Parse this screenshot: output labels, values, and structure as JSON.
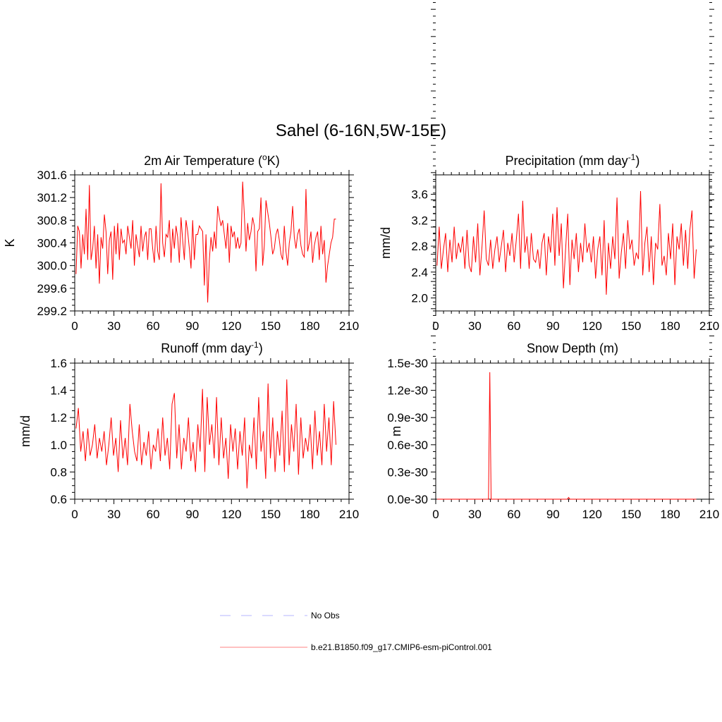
{
  "figure": {
    "title": "Sahel (6-16N,5W-15E)"
  },
  "legend": [
    {
      "label": "No Obs",
      "color": "#b4b4ff",
      "style": "dashed"
    },
    {
      "label": "b.e21.B1850.f09_g17.CMIP6-esm-piControl.001",
      "color": "#ff8080",
      "style": "solid"
    }
  ],
  "chart_data": [
    {
      "id": "temp",
      "type": "line",
      "title": "2m Air Temperature (°K)",
      "title_parts": [
        "2m Air Temperature (",
        "o",
        "K)"
      ],
      "xlabel": "",
      "ylabel": "K",
      "xlim": [
        0,
        210
      ],
      "ylim": [
        299.2,
        301.6
      ],
      "grid": false,
      "xticks": [
        0,
        30,
        60,
        90,
        120,
        150,
        180,
        210
      ],
      "xtick_labels": [
        "0",
        "30",
        "60",
        "90",
        "120",
        "150",
        "180",
        "210"
      ],
      "yticks": [
        299.2,
        299.6,
        300.0,
        300.4,
        300.8,
        301.2,
        301.6
      ],
      "ytick_labels": [
        "299.2",
        "299.6",
        "300.0",
        "300.4",
        "300.8",
        "301.2",
        "301.6"
      ],
      "series": [
        {
          "name": "b.e21.B1850.f09_g17.CMIP6-esm-piControl.001",
          "color": "#ff0000",
          "y": [
            299.85,
            300.7,
            300.6,
            299.95,
            300.55,
            300.2,
            301.0,
            300.1,
            301.42,
            300.1,
            300.3,
            300.7,
            299.95,
            300.55,
            299.68,
            300.5,
            300.3,
            300.9,
            300.6,
            299.85,
            300.45,
            300.6,
            299.75,
            300.7,
            300.2,
            300.75,
            300.1,
            300.65,
            300.4,
            300.45,
            300.2,
            300.7,
            300.5,
            300.3,
            300.8,
            300.0,
            300.55,
            300.35,
            300.15,
            300.7,
            300.25,
            300.5,
            300.6,
            300.1,
            300.65,
            300.65,
            300.3,
            300.05,
            300.7,
            300.25,
            300.1,
            301.45,
            300.4,
            300.15,
            300.55,
            300.5,
            300.8,
            300.05,
            300.65,
            300.3,
            300.7,
            300.5,
            300.05,
            300.85,
            300.45,
            300.1,
            300.8,
            300.6,
            300.3,
            299.95,
            300.8,
            300.1,
            300.55,
            300.55,
            300.7,
            300.65,
            300.6,
            299.65,
            300.55,
            299.35,
            300.1,
            300.5,
            300.25,
            300.6,
            300.3,
            301.05,
            300.85,
            300.7,
            300.8,
            300.55,
            300.3,
            300.75,
            300.05,
            300.7,
            300.5,
            300.6,
            300.3,
            300.5,
            300.3,
            300.4,
            301.48,
            300.9,
            300.25,
            300.75,
            300.45,
            300.6,
            300.85,
            300.7,
            299.9,
            300.6,
            300.65,
            301.2,
            300.0,
            300.35,
            301.15,
            300.95,
            300.75,
            300.5,
            300.2,
            300.3,
            300.55,
            300.65,
            300.45,
            300.2,
            300.1,
            300.7,
            300.25,
            300.0,
            300.4,
            300.6,
            301.05,
            300.5,
            300.3,
            300.55,
            300.65,
            300.35,
            300.2,
            300.15,
            301.35,
            300.25,
            300.4,
            300.6,
            300.05,
            300.35,
            300.5,
            300.6,
            300.1,
            300.7,
            300.2,
            300.45,
            299.7,
            300.0,
            300.2,
            300.4,
            300.5,
            300.82,
            300.82
          ]
        }
      ]
    },
    {
      "id": "precip",
      "type": "line",
      "title": "Precipitation (mm day-1)",
      "title_parts": [
        "Precipitation (mm day",
        "-1",
        ")"
      ],
      "xlabel": "",
      "ylabel": "mm/d",
      "xlim": [
        0,
        210
      ],
      "ylim": [
        1.8,
        3.9
      ],
      "grid": false,
      "xticks": [
        0,
        30,
        60,
        90,
        120,
        150,
        180,
        210
      ],
      "xtick_labels": [
        "0",
        "30",
        "60",
        "90",
        "120",
        "150",
        "180",
        "210"
      ],
      "yticks": [
        2.0,
        2.4,
        2.8,
        3.2,
        3.6
      ],
      "ytick_labels": [
        "2.0",
        "2.4",
        "2.8",
        "3.2",
        "3.6"
      ],
      "series": [
        {
          "name": "b.e21.B1850.f09_g17.CMIP6-esm-piControl.001",
          "color": "#ff0000",
          "y": [
            2.5,
            3.1,
            2.45,
            2.75,
            3.0,
            2.4,
            2.9,
            2.55,
            3.1,
            2.6,
            2.85,
            2.7,
            2.95,
            2.45,
            3.05,
            2.5,
            2.4,
            2.95,
            2.55,
            3.15,
            2.35,
            2.8,
            3.35,
            2.6,
            2.5,
            2.9,
            2.45,
            2.75,
            2.95,
            2.55,
            2.8,
            3.05,
            2.4,
            2.85,
            2.65,
            3.0,
            2.55,
            2.9,
            3.3,
            2.45,
            3.5,
            2.7,
            2.95,
            2.45,
            3.0,
            2.6,
            2.55,
            2.75,
            2.45,
            2.85,
            3.0,
            2.35,
            2.95,
            2.7,
            3.3,
            2.5,
            3.4,
            2.65,
            3.15,
            2.15,
            2.75,
            3.3,
            2.2,
            2.9,
            2.6,
            3.0,
            2.4,
            2.85,
            2.55,
            3.15,
            2.7,
            2.85,
            2.55,
            2.95,
            2.3,
            2.75,
            2.95,
            2.35,
            3.2,
            2.05,
            2.85,
            2.45,
            2.95,
            2.6,
            3.55,
            2.3,
            2.7,
            3.0,
            2.45,
            3.2,
            2.75,
            2.9,
            2.5,
            2.7,
            2.6,
            3.65,
            2.35,
            2.85,
            3.1,
            2.4,
            2.95,
            2.2,
            2.85,
            2.75,
            3.45,
            2.5,
            2.65,
            2.35,
            3.0,
            2.6,
            3.15,
            2.2,
            2.95,
            2.75,
            3.15,
            2.5,
            3.05,
            2.45,
            3.05,
            3.35,
            2.3,
            2.75
          ]
        }
      ]
    },
    {
      "id": "runoff",
      "type": "line",
      "title": "Runoff (mm day-1)",
      "title_parts": [
        "Runoff (mm day",
        "-1",
        ")"
      ],
      "xlabel": "",
      "ylabel": "mm/d",
      "xlim": [
        0,
        210
      ],
      "ylim": [
        0.6,
        1.6
      ],
      "grid": false,
      "xticks": [
        0,
        30,
        60,
        90,
        120,
        150,
        180,
        210
      ],
      "xtick_labels": [
        "0",
        "30",
        "60",
        "90",
        "120",
        "150",
        "180",
        "210"
      ],
      "yticks": [
        0.6,
        0.8,
        1.0,
        1.2,
        1.4,
        1.6
      ],
      "ytick_labels": [
        "0.6",
        "0.8",
        "1.0",
        "1.2",
        "1.4",
        "1.6"
      ],
      "series": [
        {
          "name": "b.e21.B1850.f09_g17.CMIP6-esm-piControl.001",
          "color": "#ff0000",
          "y": [
            1.12,
            1.27,
            0.95,
            1.1,
            0.88,
            1.12,
            0.92,
            1.0,
            1.15,
            0.9,
            1.05,
            0.95,
            1.1,
            0.85,
            1.0,
            1.2,
            0.92,
            1.05,
            0.8,
            1.18,
            0.9,
            1.05,
            0.85,
            1.3,
            1.1,
            0.95,
            0.88,
            1.15,
            0.85,
            1.02,
            0.92,
            1.1,
            0.82,
            1.0,
            0.95,
            1.12,
            0.88,
            1.2,
            0.92,
            1.05,
            0.82,
            1.3,
            1.38,
            0.9,
            1.15,
            0.82,
            1.05,
            0.95,
            1.2,
            0.88,
            1.02,
            0.8,
            1.15,
            0.95,
            1.41,
            0.8,
            1.35,
            1.0,
            1.15,
            0.9,
            1.35,
            0.85,
            1.2,
            0.9,
            1.05,
            0.75,
            1.15,
            0.95,
            1.12,
            0.82,
            1.1,
            0.92,
            1.2,
            0.68,
            1.0,
            0.9,
            1.2,
            0.82,
            1.35,
            0.95,
            1.1,
            0.75,
            1.45,
            0.9,
            1.2,
            0.8,
            1.1,
            0.92,
            1.25,
            0.8,
            1.48,
            0.85,
            1.15,
            0.95,
            1.3,
            0.78,
            1.2,
            0.9,
            1.05,
            0.95,
            1.15,
            0.82,
            1.25,
            0.92,
            1.1,
            0.85,
            1.3,
            0.95,
            1.2,
            0.85,
            1.32,
            1.0
          ]
        }
      ]
    },
    {
      "id": "snow",
      "type": "line",
      "title": "Snow Depth (m)",
      "title_parts": [
        "Snow Depth (m)"
      ],
      "xlabel": "",
      "ylabel": "m",
      "xlim": [
        0,
        210
      ],
      "ylim": [
        0,
        1.5e-30
      ],
      "grid": false,
      "xticks": [
        0,
        30,
        60,
        90,
        120,
        150,
        180,
        210
      ],
      "xtick_labels": [
        "0",
        "30",
        "60",
        "90",
        "120",
        "150",
        "180",
        "210"
      ],
      "yticks": [
        0,
        3e-31,
        6e-31,
        9e-31,
        1.2e-30,
        1.5e-30
      ],
      "ytick_labels": [
        "0.0e-30",
        "0.3e-30",
        "0.6e-30",
        "0.9e-30",
        "1.2e-30",
        "1.5e-30"
      ],
      "series": [
        {
          "name": "b.e21.B1850.f09_g17.CMIP6-esm-piControl.001",
          "color": "#ff0000",
          "x": [
            1,
            39.5,
            40.5,
            41.5,
            42.5,
            101,
            102,
            103,
            200
          ],
          "y": [
            0,
            0,
            0,
            1.4e-30,
            0,
            0,
            2e-32,
            0,
            0
          ]
        }
      ]
    }
  ]
}
